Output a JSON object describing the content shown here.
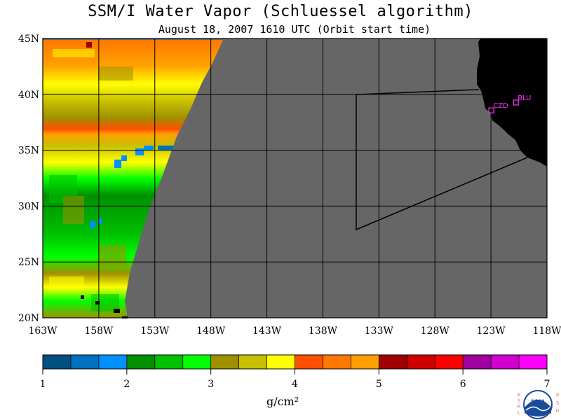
{
  "title": "SSM/I Water Vapor (Schluessel algorithm)",
  "subtitle": "August 18, 2007  1610 UTC  (Orbit start time)",
  "map": {
    "lon_range": [
      -163,
      -118
    ],
    "lat_range": [
      20,
      45
    ],
    "colors": {
      "ocean_no_data": "#666666",
      "land": "#000000",
      "grid": "#000000",
      "station": "#ff33ff"
    },
    "lat_labels": [
      "45N",
      "40N",
      "35N",
      "30N",
      "25N",
      "20N"
    ],
    "lon_labels": [
      "163W",
      "158W",
      "153W",
      "148W",
      "143W",
      "138W",
      "133W",
      "128W",
      "123W",
      "118W"
    ],
    "stations": [
      {
        "name": "CZD",
        "lon": -123.0,
        "lat": 38.6
      },
      {
        "name": "BLU",
        "lon": -120.8,
        "lat": 39.3
      }
    ]
  },
  "colorbar": {
    "range": [
      1,
      7
    ],
    "tick_labels": [
      "1",
      "2",
      "3",
      "4",
      "5",
      "6",
      "7"
    ],
    "units": "g/cm²",
    "colors": [
      "#005080",
      "#0070c0",
      "#0090ff",
      "#009000",
      "#00c000",
      "#00ff00",
      "#a09000",
      "#c8c000",
      "#ffff00",
      "#ff5000",
      "#ff7800",
      "#ffa000",
      "#a00000",
      "#d00000",
      "#ff0000",
      "#a000a0",
      "#d000d0",
      "#ff00ff"
    ]
  },
  "credits": {
    "logo_text": "NOAA",
    "left_letters": [
      "E",
      "S",
      "R",
      "L"
    ],
    "right_letters": [
      "P",
      "S",
      "D"
    ]
  }
}
